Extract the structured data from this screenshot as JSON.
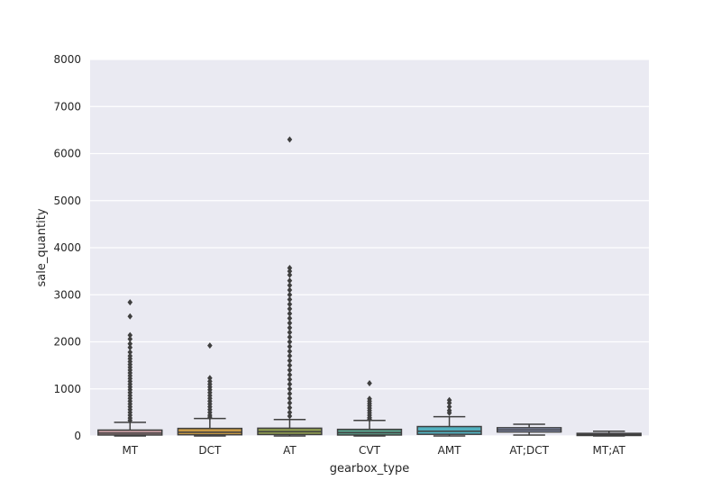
{
  "chart_data": {
    "type": "boxplot",
    "title": "",
    "xlabel": "gearbox_type",
    "ylabel": "sale_quantity",
    "ylim": [
      0,
      8000
    ],
    "yticks": [
      0,
      1000,
      2000,
      3000,
      4000,
      5000,
      6000,
      7000,
      8000
    ],
    "grid": true,
    "categories": [
      "MT",
      "DCT",
      "AT",
      "CVT",
      "AMT",
      "AT;DCT",
      "MT;AT"
    ],
    "colors": [
      "#c49a9f",
      "#c89a45",
      "#8f9c50",
      "#5aa18d",
      "#52b1bf",
      "#9aa6cf",
      "#c7a4c7"
    ],
    "boxes": [
      {
        "category": "MT",
        "whislo": 0,
        "q1": 20,
        "median": 60,
        "q3": 125,
        "whishi": 290,
        "fliers": [
          2840,
          2540,
          2140,
          2060,
          1960,
          1880,
          1780,
          1700,
          1640,
          1580,
          1520,
          1460,
          1400,
          1340,
          1280,
          1220,
          1160,
          1100,
          1040,
          980,
          920,
          860,
          800,
          740,
          680,
          620,
          560,
          500,
          440,
          380,
          330
        ]
      },
      {
        "category": "DCT",
        "whislo": 0,
        "q1": 25,
        "median": 80,
        "q3": 160,
        "whishi": 370,
        "fliers": [
          1920,
          1230,
          1160,
          1100,
          1040,
          980,
          920,
          860,
          800,
          740,
          680,
          620,
          560,
          500,
          440,
          400
        ]
      },
      {
        "category": "AT",
        "whislo": 0,
        "q1": 30,
        "median": 90,
        "q3": 165,
        "whishi": 350,
        "fliers": [
          6300,
          3570,
          3500,
          3420,
          3300,
          3200,
          3100,
          3000,
          2900,
          2800,
          2700,
          2600,
          2500,
          2400,
          2300,
          2200,
          2100,
          2000,
          1900,
          1800,
          1700,
          1600,
          1500,
          1400,
          1300,
          1200,
          1100,
          1000,
          900,
          800,
          700,
          600,
          500,
          420
        ]
      },
      {
        "category": "CVT",
        "whislo": 0,
        "q1": 20,
        "median": 70,
        "q3": 140,
        "whishi": 330,
        "fliers": [
          1120,
          790,
          740,
          690,
          640,
          590,
          540,
          490,
          440,
          390,
          360
        ]
      },
      {
        "category": "AMT",
        "whislo": 0,
        "q1": 35,
        "median": 100,
        "q3": 200,
        "whishi": 410,
        "fliers": [
          760,
          700,
          620,
          540,
          490
        ]
      },
      {
        "category": "AT;DCT",
        "whislo": 20,
        "q1": 85,
        "median": 130,
        "q3": 175,
        "whishi": 250,
        "fliers": []
      },
      {
        "category": "MT;AT",
        "whislo": 0,
        "q1": 10,
        "median": 30,
        "q3": 55,
        "whishi": 100,
        "fliers": []
      }
    ]
  }
}
